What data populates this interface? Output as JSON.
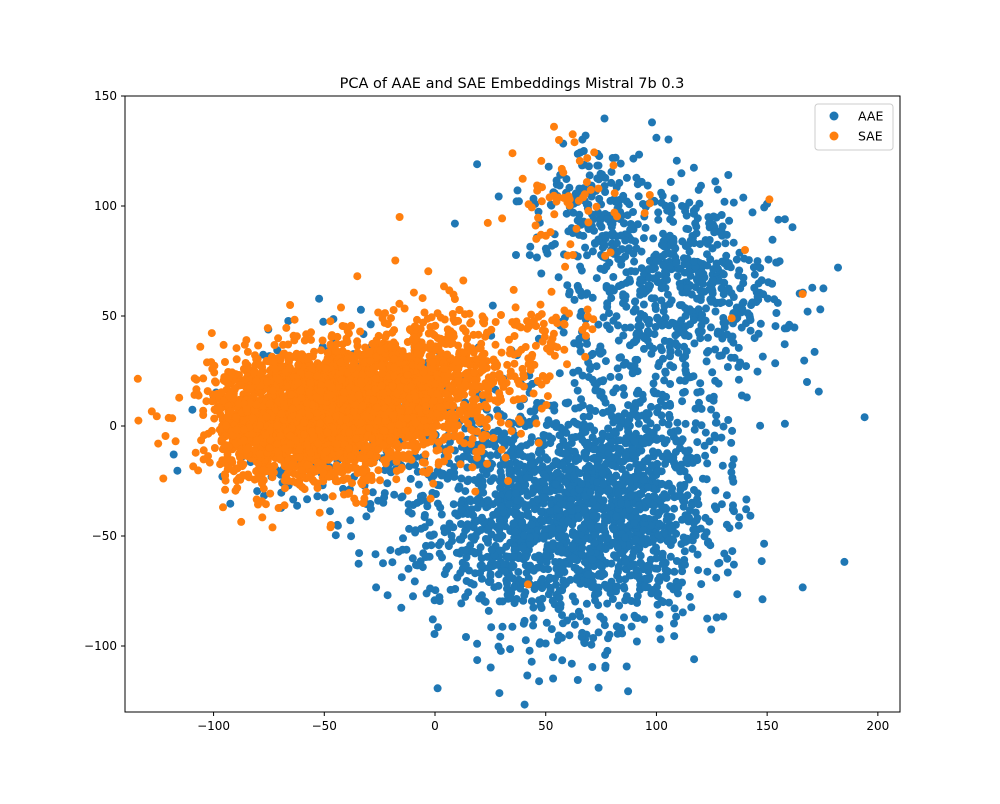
{
  "chart_data": {
    "type": "scatter",
    "title": "PCA of AAE and SAE Embeddings Mistral 7b 0.3",
    "xlabel": "",
    "ylabel": "",
    "xlim": [
      -140,
      210
    ],
    "ylim": [
      -130,
      150
    ],
    "x_ticks": [
      -100,
      -50,
      0,
      50,
      100,
      150,
      200
    ],
    "y_ticks": [
      -100,
      -50,
      0,
      50,
      100,
      150
    ],
    "x_tick_labels": [
      "−100",
      "−50",
      "0",
      "50",
      "100",
      "150",
      "200"
    ],
    "y_tick_labels": [
      "−100",
      "−50",
      "0",
      "50",
      "100",
      "150"
    ],
    "grid": false,
    "legend_position": "top-right",
    "series": [
      {
        "name": "AAE",
        "color": "#1f77b4",
        "clusters": [
          {
            "cx": 55,
            "cy": -40,
            "sx": 32,
            "sy": 26,
            "n": 1700
          },
          {
            "cx": 90,
            "cy": -30,
            "sx": 22,
            "sy": 30,
            "n": 500
          },
          {
            "cx": -40,
            "cy": 0,
            "sx": 25,
            "sy": 18,
            "n": 350
          },
          {
            "cx": 100,
            "cy": 70,
            "sx": 22,
            "sy": 22,
            "n": 420
          },
          {
            "cx": 125,
            "cy": 55,
            "sx": 18,
            "sy": 20,
            "n": 220
          },
          {
            "cx": 70,
            "cy": 100,
            "sx": 15,
            "sy": 12,
            "n": 130
          }
        ],
        "outliers": [
          {
            "x": 194,
            "y": 4
          },
          {
            "x": 182,
            "y": 72
          },
          {
            "x": 158,
            "y": 1
          },
          {
            "x": 98,
            "y": 138
          },
          {
            "x": 68,
            "y": 132
          },
          {
            "x": 100,
            "y": 131
          },
          {
            "x": 47,
            "y": -116
          },
          {
            "x": 117,
            "y": -106
          },
          {
            "x": 19,
            "y": -99
          },
          {
            "x": 77,
            "y": -109
          },
          {
            "x": 174,
            "y": 53
          },
          {
            "x": 160,
            "y": 46
          },
          {
            "x": 19,
            "y": 119
          },
          {
            "x": 9,
            "y": 92
          },
          {
            "x": 150,
            "y": 101
          },
          {
            "x": 158,
            "y": 94
          },
          {
            "x": 135,
            "y": -63
          },
          {
            "x": 127,
            "y": -69
          },
          {
            "x": -96,
            "y": -23
          }
        ]
      },
      {
        "name": "SAE",
        "color": "#ff7f0e",
        "clusters": [
          {
            "cx": -55,
            "cy": 5,
            "sx": 20,
            "sy": 15,
            "n": 2100
          },
          {
            "cx": -20,
            "cy": 15,
            "sx": 14,
            "sy": 16,
            "n": 700
          },
          {
            "cx": 5,
            "cy": 20,
            "sx": 12,
            "sy": 16,
            "n": 350
          },
          {
            "cx": -85,
            "cy": 0,
            "sx": 10,
            "sy": 12,
            "n": 260
          },
          {
            "cx": 30,
            "cy": 20,
            "sx": 12,
            "sy": 16,
            "n": 110
          },
          {
            "cx": 62,
            "cy": 100,
            "sx": 15,
            "sy": 15,
            "n": 55
          },
          {
            "cx": 55,
            "cy": 45,
            "sx": 10,
            "sy": 8,
            "n": 40
          }
        ],
        "outliers": [
          {
            "x": -125,
            "y": -8
          },
          {
            "x": 166,
            "y": 60
          },
          {
            "x": 151,
            "y": 103
          },
          {
            "x": 35,
            "y": 124
          },
          {
            "x": -16,
            "y": 95
          },
          {
            "x": 42,
            "y": -72
          },
          {
            "x": -47,
            "y": -45
          },
          {
            "x": -106,
            "y": 36
          },
          {
            "x": 56,
            "y": 130
          },
          {
            "x": 63,
            "y": 129
          },
          {
            "x": 140,
            "y": 80
          },
          {
            "x": 134,
            "y": 49
          },
          {
            "x": 97,
            "y": 105
          },
          {
            "x": 33,
            "y": -25
          },
          {
            "x": -2,
            "y": -33
          }
        ]
      }
    ]
  }
}
